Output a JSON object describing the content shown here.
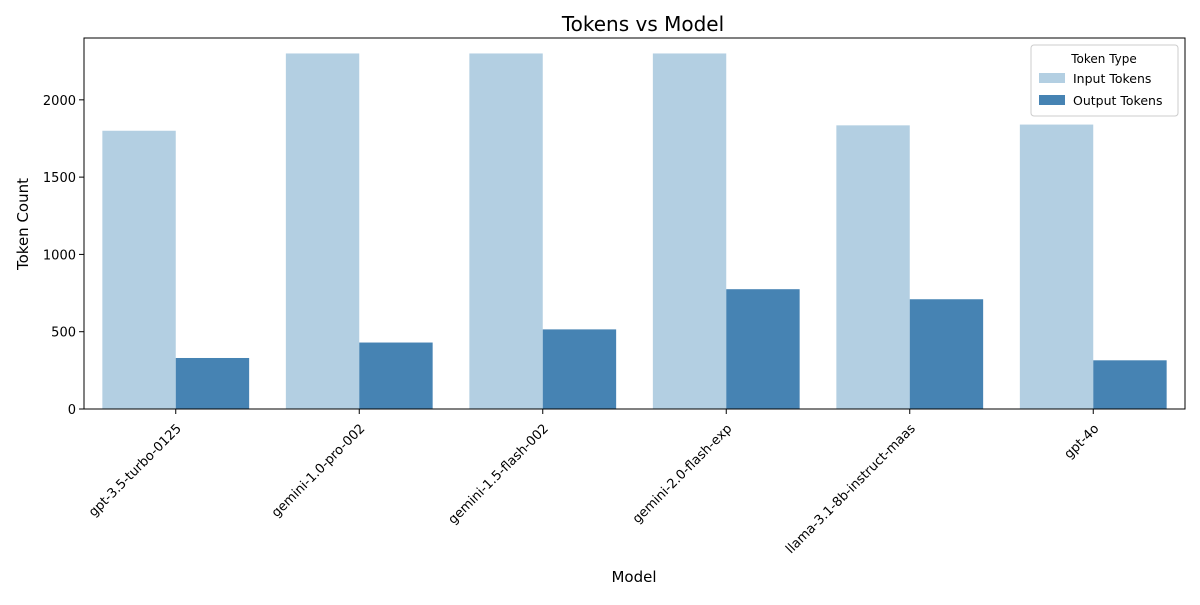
{
  "chart_data": {
    "type": "bar",
    "title": "Tokens vs Model",
    "xlabel": "Model",
    "ylabel": "Token Count",
    "ylim": [
      0,
      2400
    ],
    "yticks": [
      0,
      500,
      1000,
      1500,
      2000
    ],
    "grid": false,
    "categories": [
      "gpt-3.5-turbo-0125",
      "gemini-1.0-pro-002",
      "gemini-1.5-flash-002",
      "gemini-2.0-flash-exp",
      "llama-3.1-8b-instruct-maas",
      "gpt-4o"
    ],
    "series": [
      {
        "name": "Input Tokens",
        "color": "#b3cfe2",
        "values": [
          1800,
          2300,
          2300,
          2300,
          1835,
          1840
        ]
      },
      {
        "name": "Output Tokens",
        "color": "#4683b3",
        "values": [
          330,
          430,
          515,
          775,
          710,
          315
        ]
      }
    ],
    "legend": {
      "title": "Token Type",
      "placement": "top-right"
    }
  }
}
